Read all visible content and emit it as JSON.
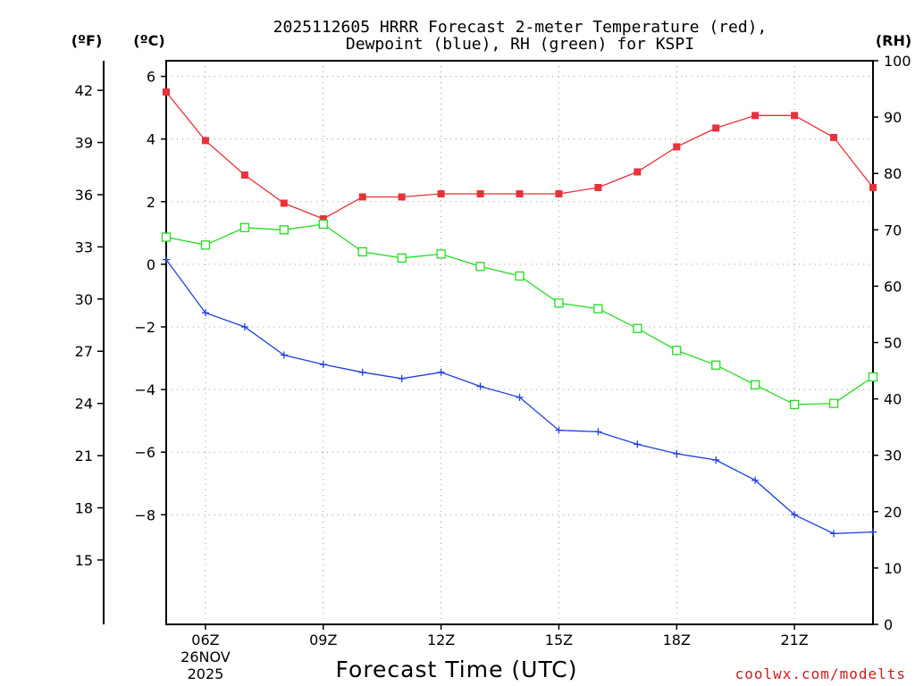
{
  "chart_data": {
    "type": "line",
    "title_line1": "2025112605 HRRR Forecast 2-meter Temperature (red),",
    "title_line2": "Dewpoint (blue), RH (green) for KSPI",
    "xlabel": "Forecast Time (UTC)",
    "left_unit_f": "(ºF)",
    "left_unit_c": "(ºC)",
    "right_unit": "(RH)",
    "credit": "coolwx.com/modelts",
    "x_hours": [
      5,
      6,
      7,
      8,
      9,
      10,
      11,
      12,
      13,
      14,
      15,
      16,
      17,
      18,
      19,
      20,
      21,
      22,
      23
    ],
    "x_ticks": [
      {
        "hour": 6,
        "label": "06Z",
        "date1": "26NOV",
        "date2": "2025"
      },
      {
        "hour": 9,
        "label": "09Z",
        "date1": "",
        "date2": ""
      },
      {
        "hour": 12,
        "label": "12Z",
        "date1": "",
        "date2": ""
      },
      {
        "hour": 15,
        "label": "15Z",
        "date1": "",
        "date2": ""
      },
      {
        "hour": 18,
        "label": "18Z",
        "date1": "",
        "date2": ""
      },
      {
        "hour": 21,
        "label": "21Z",
        "date1": "",
        "date2": ""
      }
    ],
    "xlim": [
      5,
      23
    ],
    "ylim_c": [
      -11.5,
      6.5
    ],
    "ylim_rh": [
      0,
      100
    ],
    "y_ticks_c": [
      "6",
      "4",
      "2",
      "0",
      "−2",
      "−4",
      "−6",
      "−8"
    ],
    "y_ticks_c_values": [
      6,
      4,
      2,
      0,
      -2,
      -4,
      -6,
      -8
    ],
    "y_ticks_f": [
      "42",
      "39",
      "36",
      "33",
      "30",
      "27",
      "24",
      "21",
      "18",
      "15"
    ],
    "y_ticks_f_values": [
      42,
      39,
      36,
      33,
      30,
      27,
      24,
      21,
      18,
      15
    ],
    "y_ticks_rh": [
      "100",
      "90",
      "80",
      "70",
      "60",
      "50",
      "40",
      "30",
      "20",
      "10",
      "0"
    ],
    "y_ticks_rh_values": [
      100,
      90,
      80,
      70,
      60,
      50,
      40,
      30,
      20,
      10,
      0
    ],
    "series": [
      {
        "name": "Temperature",
        "axis": "c",
        "color": "#e8313a",
        "marker": "filled-square",
        "values": [
          5.5,
          3.95,
          2.85,
          1.95,
          1.45,
          2.15,
          2.15,
          2.25,
          2.25,
          2.25,
          2.25,
          2.45,
          2.95,
          3.75,
          4.35,
          4.75,
          4.75,
          4.05,
          2.45
        ]
      },
      {
        "name": "Dewpoint",
        "axis": "c",
        "color": "#1f3fe0",
        "marker": "plus",
        "values": [
          0.15,
          -1.55,
          -2.0,
          -2.9,
          -3.2,
          -3.45,
          -3.65,
          -3.45,
          -3.9,
          -4.25,
          -5.3,
          -5.35,
          -5.75,
          -6.05,
          -6.25,
          -6.9,
          -8.0,
          -8.6,
          -8.55
        ]
      },
      {
        "name": "RH",
        "axis": "rh",
        "color": "#22dd22",
        "marker": "open-square",
        "values": [
          68.7,
          67.3,
          70.4,
          70.0,
          71.0,
          66.1,
          65.0,
          65.7,
          63.5,
          61.8,
          57.0,
          56.0,
          52.5,
          48.6,
          46.0,
          42.5,
          39.0,
          39.2,
          43.9
        ]
      }
    ]
  }
}
